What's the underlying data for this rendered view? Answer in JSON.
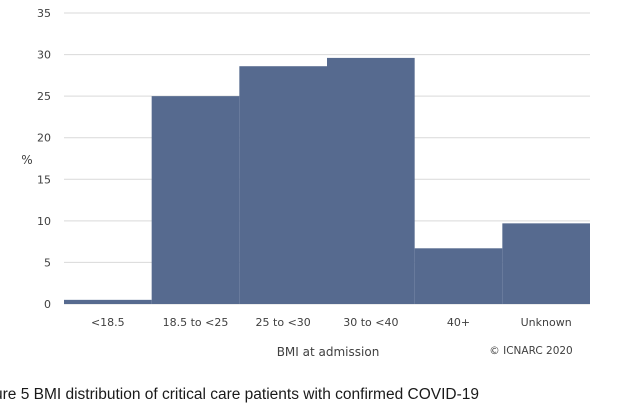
{
  "chart_data": {
    "type": "bar",
    "categories": [
      "<18.5",
      "18.5 to <25",
      "25 to <30",
      "30 to <40",
      "40+",
      "Unknown"
    ],
    "values": [
      0.5,
      25.0,
      28.6,
      29.6,
      6.7,
      9.7
    ],
    "xlabel": "BMI at admission",
    "ylabel": "%",
    "ylim": [
      0,
      35
    ],
    "yticks": [
      0,
      5,
      10,
      15,
      20,
      25,
      30,
      35
    ],
    "grid": true,
    "bar_color": "#566a8f",
    "gridline_color": "#d9d9d9",
    "credit": "© ICNARC 2020"
  },
  "caption": "ure 5   BMI distribution of critical care patients with confirmed COVID-19"
}
